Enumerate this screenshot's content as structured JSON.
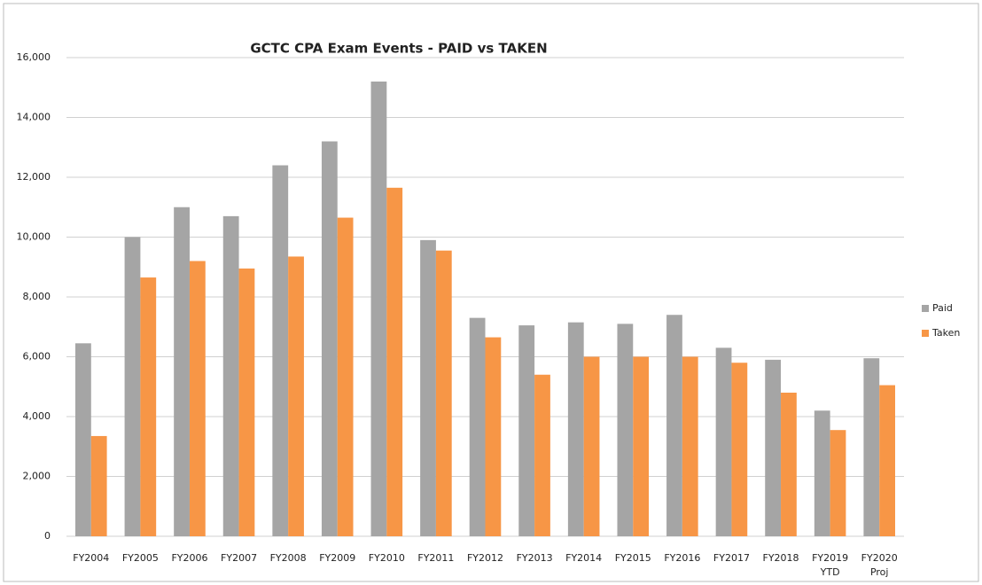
{
  "chart_data": {
    "type": "bar",
    "title": "GCTC CPA Exam Events - PAID vs TAKEN",
    "categories": [
      "FY2004",
      "FY2005",
      "FY2006",
      "FY2007",
      "FY2008",
      "FY2009",
      "FY2010",
      "FY2011",
      "FY2012",
      "FY2013",
      "FY2014",
      "FY2015",
      "FY2016",
      "FY2017",
      "FY2018",
      [
        "FY2019",
        "YTD"
      ],
      [
        "FY2020",
        "Proj"
      ]
    ],
    "series": [
      {
        "name": "Paid",
        "color": "#a5a5a5",
        "values": [
          6450,
          10000,
          11000,
          10700,
          12400,
          13200,
          15200,
          9900,
          7300,
          7050,
          7150,
          7100,
          7400,
          6300,
          5900,
          4200,
          5950
        ]
      },
      {
        "name": "Taken",
        "color": "#f79646",
        "values": [
          3350,
          8650,
          9200,
          8950,
          9350,
          10650,
          11650,
          9550,
          6650,
          5400,
          6000,
          6000,
          6000,
          5800,
          4800,
          3550,
          5050
        ]
      }
    ],
    "ylim": [
      0,
      16000
    ],
    "yticks": [
      0,
      {
        "value": 2000,
        "label": "2,000"
      },
      {
        "value": 4000,
        "label": "4,000"
      },
      {
        "value": 6000,
        "label": "6,000"
      },
      {
        "value": 8000,
        "label": "8,000"
      },
      {
        "value": 10000,
        "label": "10,000"
      },
      {
        "value": 12000,
        "label": "12,000"
      },
      {
        "value": 14000,
        "label": "14,000"
      },
      {
        "value": 16000,
        "label": "16,000"
      }
    ],
    "grid": true,
    "legend": "right"
  }
}
